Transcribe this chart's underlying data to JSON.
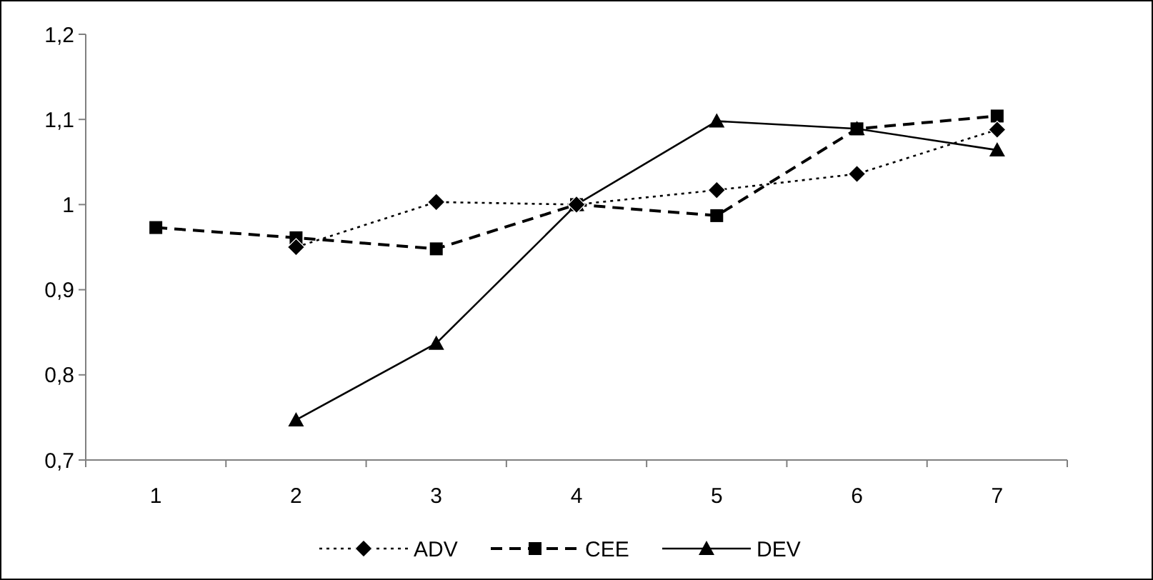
{
  "chart_data": {
    "type": "line",
    "categories": [
      "1",
      "2",
      "3",
      "4",
      "5",
      "6",
      "7"
    ],
    "series": [
      {
        "name": "ADV",
        "color": "#000000",
        "values": [
          null,
          0.95,
          1.003,
          1.0,
          1.017,
          1.036,
          1.088
        ],
        "marker": "diamond",
        "line_style": "dotted"
      },
      {
        "name": "CEE",
        "color": "#000000",
        "values": [
          0.973,
          0.961,
          0.948,
          1.0,
          0.987,
          1.089,
          1.104
        ],
        "marker": "square",
        "line_style": "dashed"
      },
      {
        "name": "DEV",
        "color": "#000000",
        "values": [
          null,
          0.747,
          0.837,
          1.0,
          1.098,
          1.089,
          1.064
        ],
        "marker": "triangle",
        "line_style": "solid"
      }
    ],
    "ylim": [
      0.7,
      1.2
    ],
    "yticks": [
      {
        "value": 0.7,
        "label": "0,7"
      },
      {
        "value": 0.8,
        "label": "0,8"
      },
      {
        "value": 0.9,
        "label": "0,9"
      },
      {
        "value": 1,
        "label": "1"
      },
      {
        "value": 1.1,
        "label": "1,1"
      },
      {
        "value": 1.2,
        "label": "1,2"
      }
    ],
    "grid": false,
    "legend": "bottom"
  }
}
